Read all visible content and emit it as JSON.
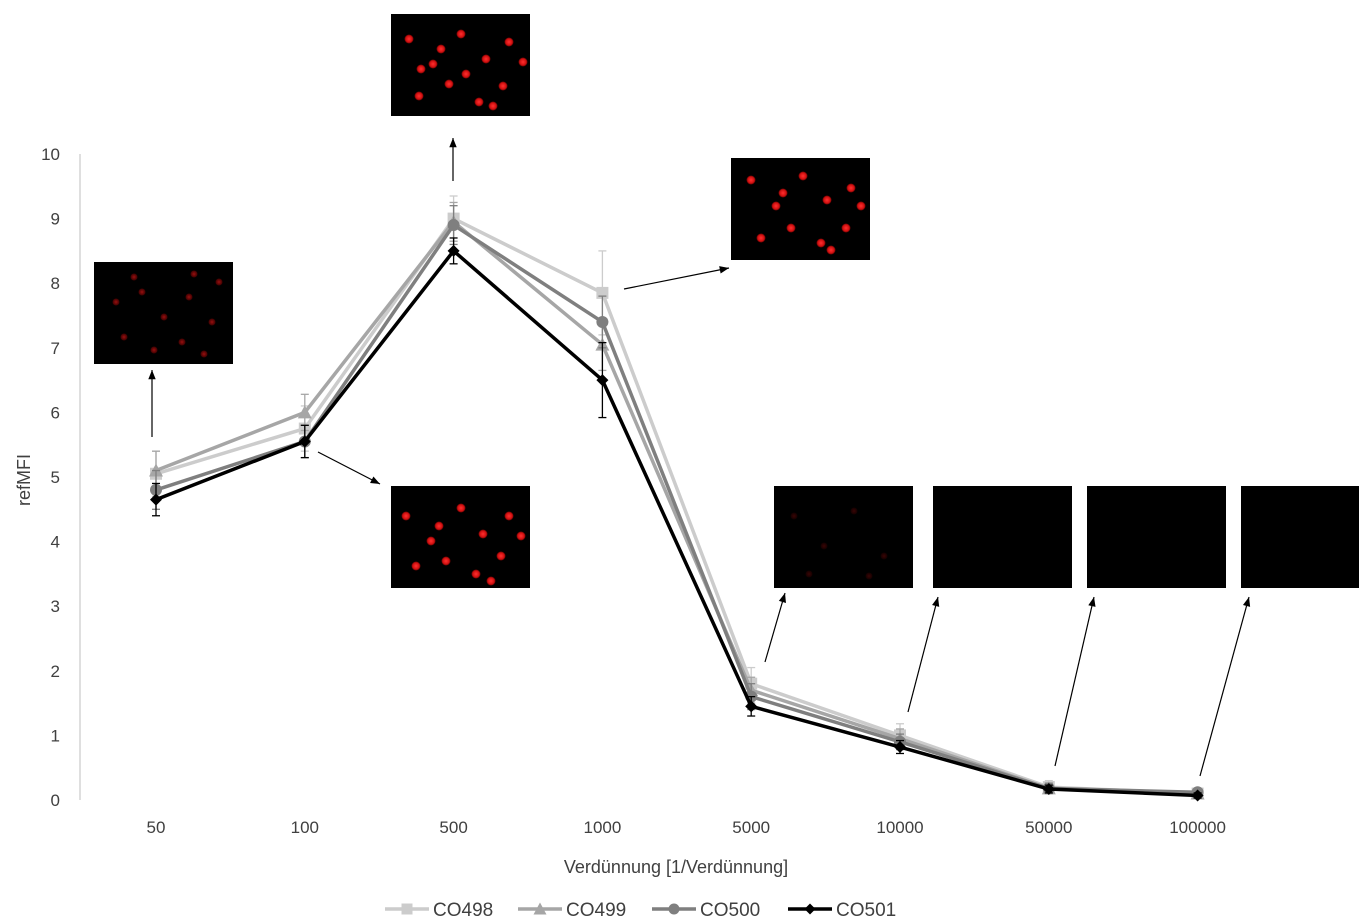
{
  "chart_data": {
    "type": "line",
    "xlabel": "Verdünnung [1/Verdünnung]",
    "ylabel": "refMFI",
    "categories": [
      "50",
      "100",
      "500",
      "1000",
      "5000",
      "10000",
      "50000",
      "100000"
    ],
    "ylim": [
      0,
      10
    ],
    "yticks": [
      "0",
      "1",
      "2",
      "3",
      "4",
      "5",
      "6",
      "7",
      "8",
      "9",
      "10"
    ],
    "grid": false,
    "legend_position": "bottom",
    "series": [
      {
        "name": "CO498",
        "color": "#cccccc",
        "marker": "square",
        "values": [
          5.05,
          5.75,
          9.0,
          7.85,
          1.8,
          1.0,
          0.2,
          0.1
        ],
        "error": [
          0.35,
          0.35,
          0.35,
          0.65,
          0.25,
          0.18,
          0.1,
          0.05
        ]
      },
      {
        "name": "CO499",
        "color": "#a6a6a6",
        "marker": "triangle",
        "values": [
          5.1,
          6.0,
          8.95,
          7.05,
          1.7,
          0.95,
          0.18,
          0.1
        ],
        "error": [
          0.3,
          0.28,
          0.3,
          0.4,
          0.2,
          0.15,
          0.08,
          0.05
        ]
      },
      {
        "name": "CO500",
        "color": "#7f7f7f",
        "marker": "circle",
        "values": [
          4.8,
          5.55,
          8.9,
          7.4,
          1.6,
          0.9,
          0.18,
          0.12
        ],
        "error": [
          0.3,
          0.25,
          0.3,
          0.4,
          0.2,
          0.12,
          0.08,
          0.05
        ]
      },
      {
        "name": "CO501",
        "color": "#000000",
        "marker": "diamond",
        "values": [
          4.65,
          5.55,
          8.5,
          6.5,
          1.45,
          0.82,
          0.17,
          0.07
        ],
        "error": [
          0.25,
          0.25,
          0.2,
          0.58,
          0.15,
          0.1,
          0.06,
          0.04
        ]
      }
    ],
    "insets": [
      {
        "name": "inset-50",
        "x_index": 0,
        "y": 5.05,
        "brightness": "medium",
        "spots": [
          [
            22,
            40
          ],
          [
            48,
            30
          ],
          [
            70,
            55
          ],
          [
            95,
            35
          ],
          [
            118,
            60
          ],
          [
            30,
            75
          ],
          [
            60,
            88
          ],
          [
            88,
            80
          ],
          [
            110,
            92
          ],
          [
            125,
            20
          ],
          [
            40,
            15
          ],
          [
            100,
            12
          ]
        ]
      },
      {
        "name": "inset-100",
        "x_index": 1,
        "y": 5.55,
        "brightness": "bright",
        "spots": [
          [
            15,
            30
          ],
          [
            40,
            55
          ],
          [
            70,
            22
          ],
          [
            92,
            48
          ],
          [
            118,
            30
          ],
          [
            25,
            80
          ],
          [
            55,
            75
          ],
          [
            85,
            88
          ],
          [
            110,
            70
          ],
          [
            130,
            50
          ],
          [
            48,
            40
          ],
          [
            100,
            95
          ]
        ]
      },
      {
        "name": "inset-500",
        "x_index": 2,
        "y": 9.0,
        "brightness": "bright",
        "spots": [
          [
            18,
            25
          ],
          [
            42,
            50
          ],
          [
            70,
            20
          ],
          [
            95,
            45
          ],
          [
            118,
            28
          ],
          [
            28,
            82
          ],
          [
            58,
            70
          ],
          [
            88,
            88
          ],
          [
            112,
            72
          ],
          [
            132,
            48
          ],
          [
            50,
            35
          ],
          [
            102,
            92
          ],
          [
            30,
            55
          ],
          [
            75,
            60
          ]
        ]
      },
      {
        "name": "inset-1000",
        "x_index": 3,
        "y": 7.85,
        "brightness": "bright",
        "spots": [
          [
            20,
            22
          ],
          [
            45,
            48
          ],
          [
            72,
            18
          ],
          [
            96,
            42
          ],
          [
            120,
            30
          ],
          [
            30,
            80
          ],
          [
            60,
            70
          ],
          [
            90,
            85
          ],
          [
            115,
            70
          ],
          [
            130,
            48
          ],
          [
            52,
            35
          ],
          [
            100,
            92
          ]
        ]
      },
      {
        "name": "inset-5000",
        "x_index": 4,
        "y": 1.8,
        "brightness": "dim",
        "spots": [
          [
            20,
            30
          ],
          [
            50,
            60
          ],
          [
            80,
            25
          ],
          [
            110,
            70
          ],
          [
            35,
            88
          ],
          [
            95,
            90
          ]
        ]
      },
      {
        "name": "inset-10000",
        "x_index": 5,
        "y": 1.0,
        "brightness": "dark",
        "spots": []
      },
      {
        "name": "inset-50000",
        "x_index": 6,
        "y": 0.2,
        "brightness": "dark",
        "spots": []
      },
      {
        "name": "inset-100000",
        "x_index": 7,
        "y": 0.1,
        "brightness": "dark",
        "spots": []
      }
    ]
  }
}
